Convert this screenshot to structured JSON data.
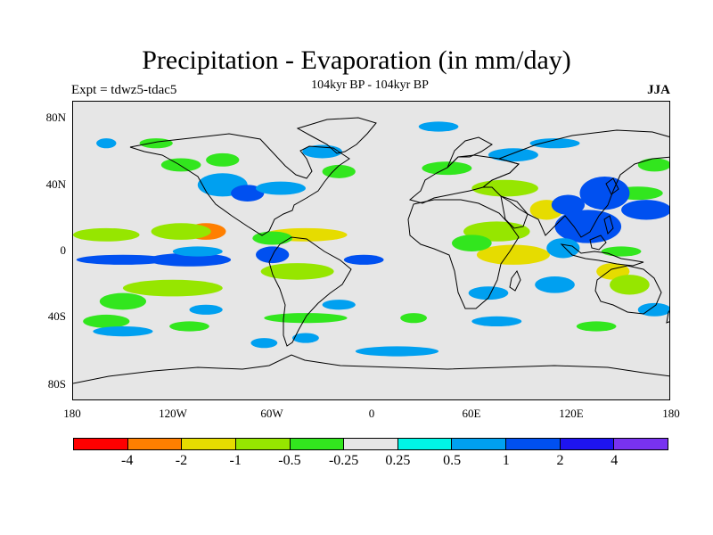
{
  "title": "Precipitation - Evaporation (in mm/day)",
  "subtitle": "104kyr BP - 104kyr BP",
  "experiment": "Expt = tdwz5-tdac5",
  "season": "JJA",
  "map": {
    "projection": "cylindrical equidistant",
    "lon_range": [
      -180,
      180
    ],
    "lat_range": [
      -90,
      90
    ],
    "missing_color": "#e6e6e6",
    "y_ticks": [
      "80N",
      "40N",
      "0",
      "40S",
      "80S"
    ],
    "x_ticks": [
      "180",
      "120W",
      "60W",
      "0",
      "60E",
      "120E",
      "180"
    ]
  },
  "colorbar": {
    "colors": [
      "#ff0000",
      "#ff7f00",
      "#e6dc00",
      "#96e600",
      "#32e61e",
      "#e6e6e6",
      "#00f5e6",
      "#00a0f0",
      "#0050f0",
      "#1e14f0",
      "#7832f0"
    ],
    "labels": [
      "-4",
      "-2",
      "-1",
      "-0.5",
      "-0.25",
      "0.25",
      "0.5",
      "1",
      "2",
      "4"
    ]
  },
  "chart_data": {
    "type": "heatmap",
    "title": "Precipitation - Evaporation (in mm/day)",
    "subtitle": "104kyr BP - 104kyr BP",
    "xlabel": "",
    "ylabel": "",
    "xlim": [
      -180,
      180
    ],
    "ylim": [
      -90,
      90
    ],
    "contour_levels": [
      -4,
      -2,
      -1,
      -0.5,
      -0.25,
      0.25,
      0.5,
      1,
      2,
      4
    ],
    "grid": false,
    "legend": "bottom",
    "anomalies": [
      {
        "lon": -100,
        "lat": 12,
        "value": -3,
        "rx": 12,
        "ry": 5
      },
      {
        "lon": -115,
        "lat": 12,
        "value": -1,
        "rx": 18,
        "ry": 5
      },
      {
        "lon": -160,
        "lat": 10,
        "value": -0.75,
        "rx": 20,
        "ry": 4
      },
      {
        "lon": -40,
        "lat": 10,
        "value": -1.5,
        "rx": 25,
        "ry": 4
      },
      {
        "lon": -60,
        "lat": 8,
        "value": -0.5,
        "rx": 12,
        "ry": 4
      },
      {
        "lon": -150,
        "lat": -5,
        "value": 1.5,
        "rx": 28,
        "ry": 3
      },
      {
        "lon": -110,
        "lat": -5,
        "value": 1,
        "rx": 25,
        "ry": 4
      },
      {
        "lon": -60,
        "lat": -2,
        "value": 1,
        "rx": 10,
        "ry": 5
      },
      {
        "lon": -5,
        "lat": -5,
        "value": 1,
        "rx": 12,
        "ry": 3
      },
      {
        "lon": -105,
        "lat": 0,
        "value": 0.5,
        "rx": 15,
        "ry": 3
      },
      {
        "lon": -120,
        "lat": -22,
        "value": -0.75,
        "rx": 30,
        "ry": 5
      },
      {
        "lon": -45,
        "lat": -12,
        "value": -0.75,
        "rx": 22,
        "ry": 5
      },
      {
        "lon": -150,
        "lat": -30,
        "value": -0.4,
        "rx": 14,
        "ry": 5
      },
      {
        "lon": -160,
        "lat": -42,
        "value": -0.5,
        "rx": 14,
        "ry": 4
      },
      {
        "lon": -40,
        "lat": -40,
        "value": -0.5,
        "rx": 25,
        "ry": 3
      },
      {
        "lon": -150,
        "lat": -48,
        "value": 0.5,
        "rx": 18,
        "ry": 3
      },
      {
        "lon": -110,
        "lat": -45,
        "value": -0.4,
        "rx": 12,
        "ry": 3
      },
      {
        "lon": -20,
        "lat": -32,
        "value": 0.5,
        "rx": 10,
        "ry": 3
      },
      {
        "lon": -100,
        "lat": -35,
        "value": 0.5,
        "rx": 10,
        "ry": 3
      },
      {
        "lon": -65,
        "lat": -55,
        "value": 0.5,
        "rx": 8,
        "ry": 3
      },
      {
        "lon": -40,
        "lat": -52,
        "value": 0.5,
        "rx": 8,
        "ry": 3
      },
      {
        "lon": 15,
        "lat": -60,
        "value": 0.5,
        "rx": 25,
        "ry": 3
      },
      {
        "lon": -90,
        "lat": 40,
        "value": 0.75,
        "rx": 15,
        "ry": 7
      },
      {
        "lon": -75,
        "lat": 35,
        "value": 1,
        "rx": 10,
        "ry": 5
      },
      {
        "lon": -55,
        "lat": 38,
        "value": 0.5,
        "rx": 15,
        "ry": 4
      },
      {
        "lon": -30,
        "lat": 60,
        "value": 0.5,
        "rx": 12,
        "ry": 4
      },
      {
        "lon": -115,
        "lat": 52,
        "value": -0.4,
        "rx": 12,
        "ry": 4
      },
      {
        "lon": -90,
        "lat": 55,
        "value": -0.5,
        "rx": 10,
        "ry": 4
      },
      {
        "lon": -130,
        "lat": 65,
        "value": -0.4,
        "rx": 10,
        "ry": 3
      },
      {
        "lon": -20,
        "lat": 48,
        "value": -0.4,
        "rx": 10,
        "ry": 4
      },
      {
        "lon": -160,
        "lat": 65,
        "value": 0.5,
        "rx": 6,
        "ry": 3
      },
      {
        "lon": 40,
        "lat": 75,
        "value": 0.5,
        "rx": 12,
        "ry": 3
      },
      {
        "lon": 110,
        "lat": 65,
        "value": 0.5,
        "rx": 15,
        "ry": 3
      },
      {
        "lon": 85,
        "lat": 58,
        "value": 0.5,
        "rx": 15,
        "ry": 4
      },
      {
        "lon": 45,
        "lat": 50,
        "value": -0.4,
        "rx": 15,
        "ry": 4
      },
      {
        "lon": 170,
        "lat": 52,
        "value": -0.4,
        "rx": 10,
        "ry": 4
      },
      {
        "lon": 160,
        "lat": 35,
        "value": -0.5,
        "rx": 15,
        "ry": 4
      },
      {
        "lon": 80,
        "lat": 38,
        "value": -0.75,
        "rx": 20,
        "ry": 5
      },
      {
        "lon": 105,
        "lat": 25,
        "value": -2,
        "rx": 10,
        "ry": 6
      },
      {
        "lon": 118,
        "lat": 28,
        "value": 1.5,
        "rx": 10,
        "ry": 6
      },
      {
        "lon": 140,
        "lat": 35,
        "value": 1.5,
        "rx": 15,
        "ry": 10
      },
      {
        "lon": 130,
        "lat": 15,
        "value": 1.5,
        "rx": 20,
        "ry": 10
      },
      {
        "lon": 165,
        "lat": 25,
        "value": 1,
        "rx": 15,
        "ry": 6
      },
      {
        "lon": 75,
        "lat": 12,
        "value": -0.75,
        "rx": 20,
        "ry": 6
      },
      {
        "lon": 85,
        "lat": -2,
        "value": -1.5,
        "rx": 22,
        "ry": 6
      },
      {
        "lon": 60,
        "lat": 5,
        "value": -0.5,
        "rx": 12,
        "ry": 5
      },
      {
        "lon": 145,
        "lat": -12,
        "value": -2,
        "rx": 10,
        "ry": 5
      },
      {
        "lon": 155,
        "lat": -20,
        "value": -0.75,
        "rx": 12,
        "ry": 6
      },
      {
        "lon": 115,
        "lat": 2,
        "value": 0.75,
        "rx": 10,
        "ry": 6
      },
      {
        "lon": 110,
        "lat": -20,
        "value": 0.5,
        "rx": 12,
        "ry": 5
      },
      {
        "lon": 70,
        "lat": -25,
        "value": 0.5,
        "rx": 12,
        "ry": 4
      },
      {
        "lon": 75,
        "lat": -42,
        "value": 0.5,
        "rx": 15,
        "ry": 3
      },
      {
        "lon": 135,
        "lat": -45,
        "value": -0.4,
        "rx": 12,
        "ry": 3
      },
      {
        "lon": 170,
        "lat": -35,
        "value": 0.5,
        "rx": 10,
        "ry": 4
      },
      {
        "lon": 25,
        "lat": -40,
        "value": -0.5,
        "rx": 8,
        "ry": 3
      },
      {
        "lon": 150,
        "lat": 0,
        "value": -0.4,
        "rx": 12,
        "ry": 3
      }
    ]
  }
}
